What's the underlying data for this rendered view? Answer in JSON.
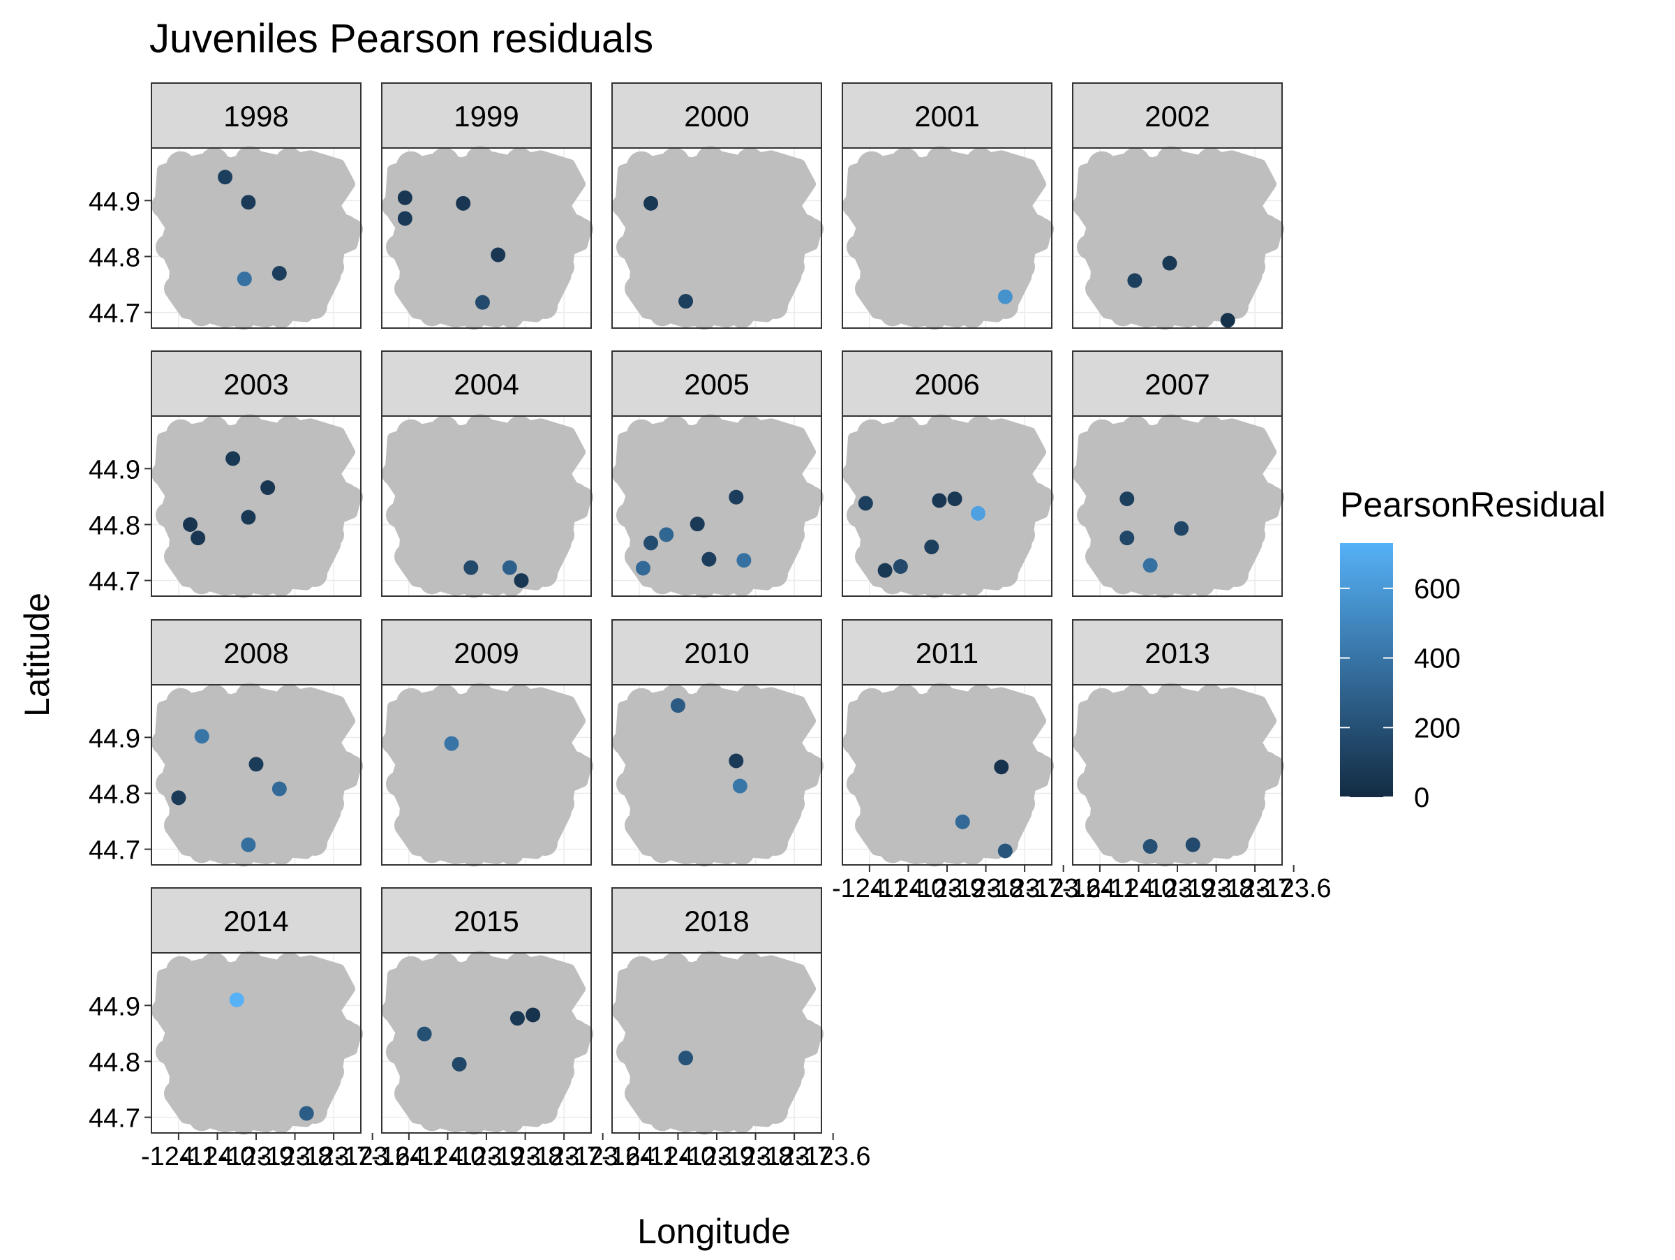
{
  "chart_data": {
    "type": "scatter",
    "title": "Juveniles Pearson residuals",
    "xlabel": "Longitude",
    "ylabel": "Latitude",
    "legend": {
      "title": "PearsonResidual",
      "ticks": [
        0,
        200,
        400,
        600
      ],
      "range": [
        0,
        730
      ],
      "colors": [
        "#132B43",
        "#56B1F7"
      ],
      "placement": "right"
    },
    "xlim": [
      -124.17,
      -123.63
    ],
    "ylim": [
      44.672,
      44.994
    ],
    "x_ticks": [
      -124.1,
      -124.0,
      -123.9,
      -123.8,
      -123.7,
      -123.6
    ],
    "x_tick_labels": [
      "-124.1",
      "-124.0",
      "-123.9",
      "-123.8",
      "-123.7",
      "-123.6"
    ],
    "y_ticks": [
      44.7,
      44.8,
      44.9
    ],
    "y_tick_labels": [
      "44.7",
      "44.8",
      "44.9"
    ],
    "grid": true,
    "panels": [
      {
        "year": "1998",
        "points": [
          {
            "x": -123.98,
            "y": 44.942,
            "r": 110
          },
          {
            "x": -123.92,
            "y": 44.897,
            "r": 80
          },
          {
            "x": -123.93,
            "y": 44.76,
            "r": 380
          },
          {
            "x": -123.84,
            "y": 44.77,
            "r": 100
          }
        ]
      },
      {
        "year": "1999",
        "points": [
          {
            "x": -124.11,
            "y": 44.905,
            "r": 60
          },
          {
            "x": -124.11,
            "y": 44.868,
            "r": 80
          },
          {
            "x": -123.96,
            "y": 44.895,
            "r": 60
          },
          {
            "x": -123.87,
            "y": 44.803,
            "r": 60
          },
          {
            "x": -123.91,
            "y": 44.718,
            "r": 170
          }
        ]
      },
      {
        "year": "2000",
        "points": [
          {
            "x": -124.07,
            "y": 44.895,
            "r": 70
          },
          {
            "x": -123.98,
            "y": 44.72,
            "r": 110
          }
        ]
      },
      {
        "year": "2001",
        "points": [
          {
            "x": -123.75,
            "y": 44.728,
            "r": 560
          }
        ]
      },
      {
        "year": "2002",
        "points": [
          {
            "x": -124.01,
            "y": 44.757,
            "r": 110
          },
          {
            "x": -123.92,
            "y": 44.788,
            "r": 70
          },
          {
            "x": -123.77,
            "y": 44.686,
            "r": 30
          }
        ]
      },
      {
        "year": "2003",
        "points": [
          {
            "x": -123.96,
            "y": 44.918,
            "r": 70
          },
          {
            "x": -123.87,
            "y": 44.866,
            "r": 60
          },
          {
            "x": -123.92,
            "y": 44.813,
            "r": 70
          },
          {
            "x": -124.07,
            "y": 44.8,
            "r": 50
          },
          {
            "x": -124.05,
            "y": 44.776,
            "r": 60
          }
        ]
      },
      {
        "year": "2004",
        "points": [
          {
            "x": -123.94,
            "y": 44.723,
            "r": 160
          },
          {
            "x": -123.84,
            "y": 44.723,
            "r": 290
          },
          {
            "x": -123.81,
            "y": 44.7,
            "r": 60
          }
        ]
      },
      {
        "year": "2005",
        "points": [
          {
            "x": -123.85,
            "y": 44.849,
            "r": 100
          },
          {
            "x": -123.95,
            "y": 44.801,
            "r": 80
          },
          {
            "x": -124.03,
            "y": 44.782,
            "r": 320
          },
          {
            "x": -124.07,
            "y": 44.767,
            "r": 180
          },
          {
            "x": -124.09,
            "y": 44.722,
            "r": 340
          },
          {
            "x": -123.92,
            "y": 44.738,
            "r": 100
          },
          {
            "x": -123.83,
            "y": 44.736,
            "r": 380
          }
        ]
      },
      {
        "year": "2006",
        "points": [
          {
            "x": -124.11,
            "y": 44.838,
            "r": 110
          },
          {
            "x": -123.92,
            "y": 44.843,
            "r": 60
          },
          {
            "x": -123.88,
            "y": 44.846,
            "r": 70
          },
          {
            "x": -123.82,
            "y": 44.82,
            "r": 640
          },
          {
            "x": -123.94,
            "y": 44.76,
            "r": 110
          },
          {
            "x": -124.06,
            "y": 44.718,
            "r": 70
          },
          {
            "x": -124.02,
            "y": 44.725,
            "r": 160
          }
        ]
      },
      {
        "year": "2007",
        "points": [
          {
            "x": -124.03,
            "y": 44.846,
            "r": 110
          },
          {
            "x": -124.03,
            "y": 44.776,
            "r": 150
          },
          {
            "x": -123.97,
            "y": 44.727,
            "r": 380
          },
          {
            "x": -123.89,
            "y": 44.793,
            "r": 140
          }
        ]
      },
      {
        "year": "2008",
        "points": [
          {
            "x": -124.04,
            "y": 44.902,
            "r": 400
          },
          {
            "x": -123.9,
            "y": 44.852,
            "r": 90
          },
          {
            "x": -123.84,
            "y": 44.808,
            "r": 340
          },
          {
            "x": -124.1,
            "y": 44.792,
            "r": 80
          },
          {
            "x": -123.92,
            "y": 44.708,
            "r": 370
          }
        ]
      },
      {
        "year": "2009",
        "points": [
          {
            "x": -123.99,
            "y": 44.889,
            "r": 400
          }
        ]
      },
      {
        "year": "2010",
        "points": [
          {
            "x": -124.0,
            "y": 44.957,
            "r": 260
          },
          {
            "x": -123.85,
            "y": 44.858,
            "r": 80
          },
          {
            "x": -123.84,
            "y": 44.813,
            "r": 410
          }
        ]
      },
      {
        "year": "2011",
        "points": [
          {
            "x": -123.76,
            "y": 44.847,
            "r": 40
          },
          {
            "x": -123.86,
            "y": 44.749,
            "r": 340
          },
          {
            "x": -123.75,
            "y": 44.697,
            "r": 230
          }
        ]
      },
      {
        "year": "2013",
        "points": [
          {
            "x": -123.97,
            "y": 44.705,
            "r": 200
          },
          {
            "x": -123.86,
            "y": 44.708,
            "r": 170
          }
        ]
      },
      {
        "year": "2014",
        "points": [
          {
            "x": -123.95,
            "y": 44.91,
            "r": 730
          },
          {
            "x": -123.77,
            "y": 44.707,
            "r": 270
          }
        ]
      },
      {
        "year": "2015",
        "points": [
          {
            "x": -124.06,
            "y": 44.849,
            "r": 200
          },
          {
            "x": -123.97,
            "y": 44.795,
            "r": 150
          },
          {
            "x": -123.82,
            "y": 44.877,
            "r": 70
          },
          {
            "x": -123.78,
            "y": 44.883,
            "r": 40
          }
        ]
      },
      {
        "year": "2018",
        "points": [
          {
            "x": -123.98,
            "y": 44.806,
            "r": 220
          }
        ]
      }
    ]
  }
}
